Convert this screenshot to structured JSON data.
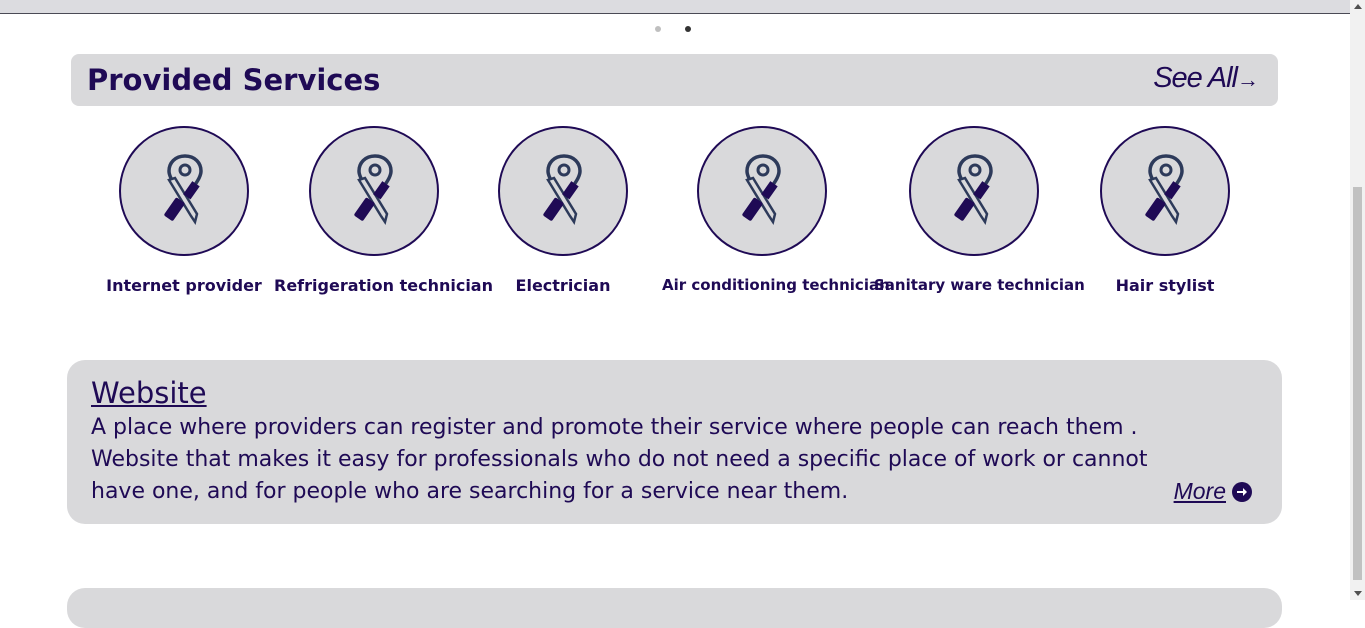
{
  "carousel": {
    "dots": 2,
    "active_dot": 2
  },
  "services_section": {
    "title": "Provided Services",
    "see_all_label": "See All",
    "see_all_icon": "arrow-right-icon",
    "items": [
      {
        "label": "Internet provider",
        "icon": "service-tools-pin-icon"
      },
      {
        "label": "Refrigeration technician",
        "icon": "service-tools-pin-icon"
      },
      {
        "label": "Electrician",
        "icon": "service-tools-pin-icon"
      },
      {
        "label": "Air conditioning technician",
        "icon": "service-tools-pin-icon"
      },
      {
        "label": "Sanitary ware technician",
        "icon": "service-tools-pin-icon"
      },
      {
        "label": "Hair stylist",
        "icon": "service-tools-pin-icon"
      }
    ]
  },
  "website_card": {
    "title": "Website",
    "description": "A place where providers can register and promote their service where people can reach them . Website that makes it easy for professionals who do not need a specific place of work or cannot have one, and for people who are searching for a service near them.",
    "more_label": "More",
    "more_icon": "arrow-circle-right-icon"
  },
  "colors": {
    "primary": "#1f0a55",
    "card_bg": "#d9d9db",
    "page_bg": "#ffffff"
  }
}
